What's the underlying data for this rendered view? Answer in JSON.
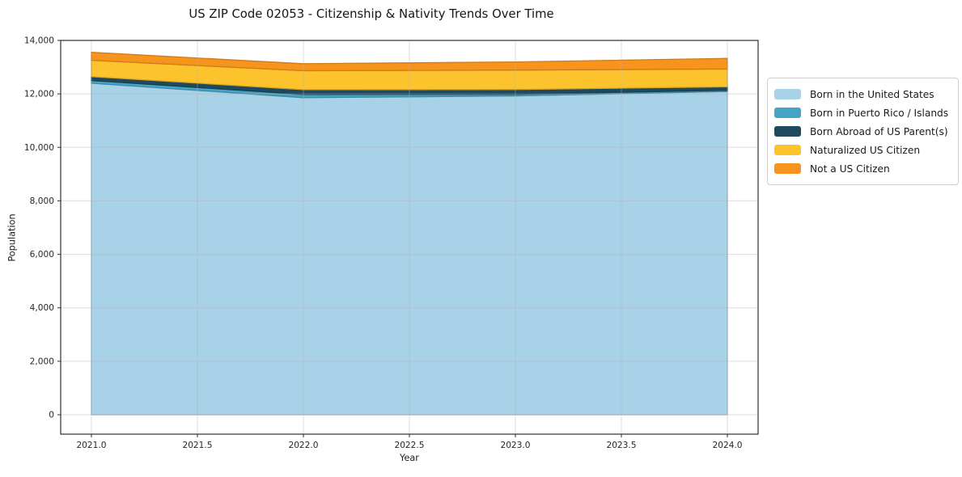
{
  "chart_data": {
    "type": "area",
    "stacked": true,
    "title": "US ZIP Code 02053 - Citizenship & Nativity Trends Over Time",
    "xlabel": "Year",
    "ylabel": "Population",
    "x": [
      2021,
      2022,
      2023,
      2024
    ],
    "series": [
      {
        "name": "Born in the United States",
        "color": "#a8d2e8",
        "values": [
          12400,
          11860,
          11925,
          12090
        ]
      },
      {
        "name": "Born in Puerto Rico / Islands",
        "color": "#46a5c6",
        "values": [
          100,
          120,
          60,
          45
        ]
      },
      {
        "name": "Born Abroad of US Parent(s)",
        "color": "#1f4a5e",
        "values": [
          145,
          180,
          180,
          130
        ]
      },
      {
        "name": "Naturalized US Citizen",
        "color": "#fdc32d",
        "values": [
          610,
          705,
          725,
          665
        ]
      },
      {
        "name": "Not a US Citizen",
        "color": "#f6941e",
        "values": [
          300,
          265,
          305,
          400
        ]
      }
    ],
    "x_ticks": [
      "2021.0",
      "2021.5",
      "2022.0",
      "2022.5",
      "2023.0",
      "2023.5",
      "2024.0"
    ],
    "x_tick_values": [
      2021,
      2021.5,
      2022,
      2022.5,
      2023,
      2023.5,
      2024
    ],
    "y_ticks": [
      "0",
      "2,000",
      "4,000",
      "6,000",
      "8,000",
      "10,000",
      "12,000",
      "14,000"
    ],
    "y_tick_values": [
      0,
      2000,
      4000,
      6000,
      8000,
      10000,
      12000,
      14000
    ],
    "xlim": [
      2020.855,
      2024.145
    ],
    "ylim": [
      -726,
      14000
    ],
    "grid": true,
    "legend_position": "right",
    "frame_color": "#2e2e2e",
    "grid_color": "rgba(180,180,180,0.45)"
  }
}
